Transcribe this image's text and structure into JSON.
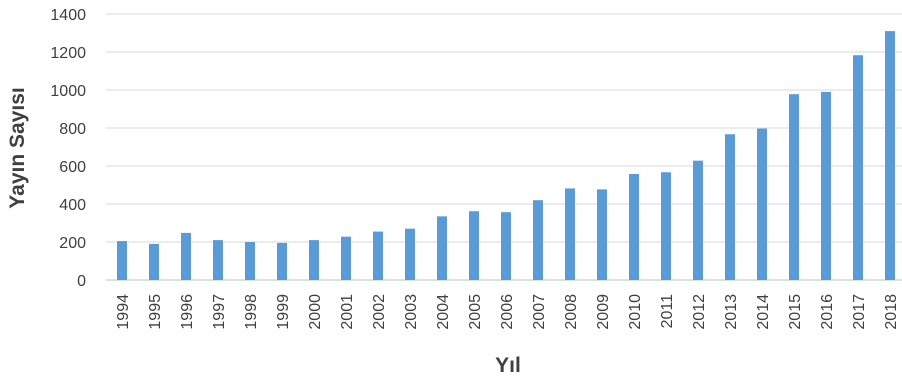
{
  "chart_data": {
    "type": "bar",
    "title": "",
    "xlabel": "Yıl",
    "ylabel": "Yayın Sayısı",
    "ylim": [
      0,
      1400
    ],
    "yticks": [
      0,
      200,
      400,
      600,
      800,
      1000,
      1200,
      1400
    ],
    "grid": true,
    "legend": "none",
    "bar_color": "#5b9bd5",
    "categories": [
      "1994",
      "1995",
      "1996",
      "1997",
      "1998",
      "1999",
      "2000",
      "2001",
      "2002",
      "2003",
      "2004",
      "2005",
      "2006",
      "2007",
      "2008",
      "2009",
      "2010",
      "2011",
      "2012",
      "2013",
      "2014",
      "2015",
      "2016",
      "2017",
      "2018"
    ],
    "values": [
      205,
      190,
      248,
      210,
      200,
      195,
      210,
      228,
      255,
      270,
      335,
      362,
      357,
      420,
      482,
      477,
      558,
      567,
      628,
      767,
      797,
      978,
      990,
      1183,
      1310
    ]
  }
}
